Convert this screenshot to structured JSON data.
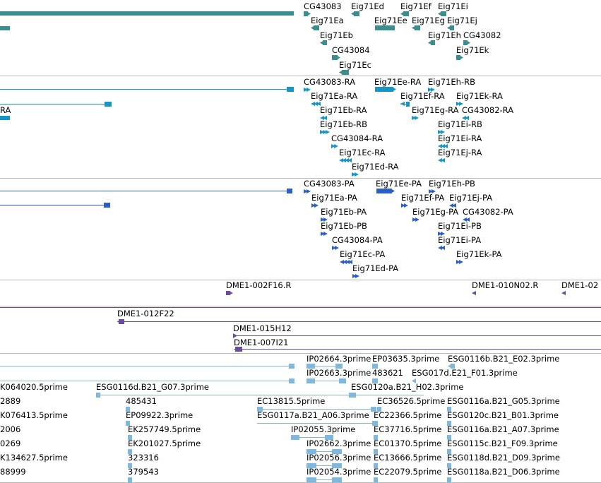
{
  "colors": {
    "gene": "#3a8e90",
    "transcript": "#1596c8",
    "cds": "#2a5fc7",
    "clone_end": "#6a4c9c",
    "est": "#7fb8de",
    "separator": "#b8b8b8"
  },
  "tracks": {
    "genes": {
      "labels": [
        "CG43083",
        "Eig71Ed",
        "Eig71Ef",
        "Eig71Ei",
        "Eig71Ea",
        "Eig71Ee",
        "Eig71Eg",
        "Eig71Ej",
        "Eig71Eb",
        "Eig71Eh",
        "CG43082",
        "CG43084",
        "Eig71Ek",
        "Eig71Ec"
      ]
    },
    "transcripts": {
      "labels": [
        "CG43083-RA",
        "Eig71Ee-RA",
        "Eig71Eh-RB",
        "Eig71Ea-RA",
        "Eig71Ef-RA",
        "Eig71Ek-RA",
        "RA",
        "Eig71Eb-RA",
        "Eig71Eg-RA",
        "CG43082-RA",
        "Eig71Eb-RB",
        "Eig71Ei-RB",
        "CG43084-RA",
        "Eig71Ei-RA",
        "Eig71Ec-RA",
        "Eig71Ej-RA",
        "Eig71Ed-RA"
      ]
    },
    "proteins": {
      "labels": [
        "CG43083-PA",
        "Eig71Ee-PA",
        "Eig71Eh-PB",
        "Eig71Ea-PA",
        "Eig71Ef-PA",
        "Eig71Ej-PA",
        "Eig71Eb-PA",
        "Eig71Eg-PA",
        "CG43082-PA",
        "Eig71Eb-PB",
        "Eig71Ei-PB",
        "CG43084-PA",
        "Eig71Ei-PA",
        "Eig71Ec-PA",
        "Eig71Ek-PA",
        "Eig71Ed-PA"
      ]
    },
    "clone_ends": {
      "labels": [
        "DME1-002F16.R",
        "DME1-010N02.R",
        "DME1-02"
      ]
    },
    "clones": {
      "labels": [
        "DME1-012F22",
        "DME1-015H12",
        "DME1-007I21"
      ]
    },
    "ests": {
      "labels": [
        "IP02664.3prime",
        "EP03635.3prime",
        "ESG0116b.B21_E02.3prime",
        "IP02663.3prime",
        "483621",
        "ESG017d.E21_F01.3prime",
        "K064020.5prime",
        "ESG0116d.B21_G07.3prime",
        "ESG0120a.B21_H02.3prime",
        "2889",
        "485431",
        "EC13815.5prime",
        "EC36526.5prime",
        "ESG0116a.B21_G05.3prime",
        "K076413.5prime",
        "EP09922.3prime",
        "ESG0117a.B21_A06.3prime",
        "EC22366.5prime",
        "ESG0120c.B21_B01.3prime",
        "2006",
        "EK257749.5prime",
        "IP02055.3prime",
        "EC37716.5prime",
        "ESG0116a.B21_A07.3prime",
        "0269",
        "EK201027.5prime",
        "IP02662.3prime",
        "EC01370.5prime",
        "ESG0115c.B21_F09.3prime",
        "K134627.5prime",
        "323316",
        "IP02056.3prime",
        "EC13666.5prime",
        "ESG0118d.B21_D09.3prime",
        "88999",
        "379543",
        "IP02054.3prime",
        "EC22079.5prime",
        "ESG0118a.B21_D06.3prime"
      ]
    }
  }
}
